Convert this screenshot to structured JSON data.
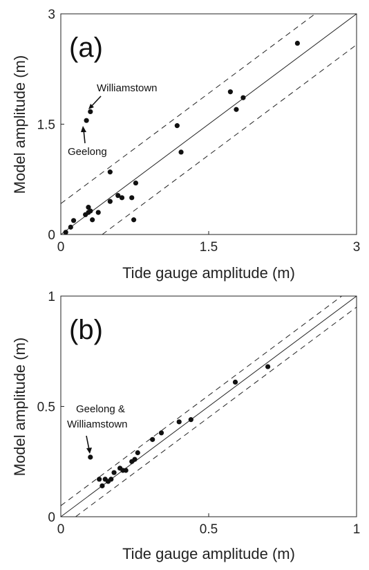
{
  "chart_data": [
    {
      "type": "scatter",
      "panel_label": "(a)",
      "xlabel": "Tide gauge amplitude (m)",
      "ylabel": "Model amplitude (m)",
      "xlim": [
        0,
        3
      ],
      "ylim": [
        0,
        3
      ],
      "xticks": [
        0,
        1.5,
        3
      ],
      "yticks": [
        0,
        1.5,
        3
      ],
      "tick_labels_x": [
        "0",
        "1.5",
        "3"
      ],
      "tick_labels_y": [
        "0",
        "1.5",
        "3"
      ],
      "grid": false,
      "reference_line": {
        "slope": 1,
        "intercept": 0
      },
      "band_lines": [
        {
          "slope": 1,
          "intercept": 0.42
        },
        {
          "slope": 1,
          "intercept": -0.42
        }
      ],
      "points": [
        {
          "x": 0.05,
          "y": 0.03
        },
        {
          "x": 0.1,
          "y": 0.1
        },
        {
          "x": 0.13,
          "y": 0.19
        },
        {
          "x": 0.25,
          "y": 0.27
        },
        {
          "x": 0.28,
          "y": 0.37
        },
        {
          "x": 0.28,
          "y": 0.3
        },
        {
          "x": 0.3,
          "y": 0.32
        },
        {
          "x": 0.32,
          "y": 0.2
        },
        {
          "x": 0.38,
          "y": 0.3
        },
        {
          "x": 0.5,
          "y": 0.45
        },
        {
          "x": 0.58,
          "y": 0.53
        },
        {
          "x": 0.62,
          "y": 0.5
        },
        {
          "x": 0.72,
          "y": 0.5
        },
        {
          "x": 0.74,
          "y": 0.2
        },
        {
          "x": 0.76,
          "y": 0.7
        },
        {
          "x": 0.5,
          "y": 0.85
        },
        {
          "x": 1.18,
          "y": 1.48
        },
        {
          "x": 1.22,
          "y": 1.12
        },
        {
          "x": 1.72,
          "y": 1.94
        },
        {
          "x": 1.78,
          "y": 1.7
        },
        {
          "x": 1.85,
          "y": 1.86
        },
        {
          "x": 2.4,
          "y": 2.6
        },
        {
          "x": 0.26,
          "y": 1.55
        },
        {
          "x": 0.3,
          "y": 1.67
        }
      ],
      "annotations": [
        {
          "text": "Williamstown",
          "x": 0.3,
          "y": 1.67
        },
        {
          "text": "Geelong",
          "x": 0.26,
          "y": 1.55
        }
      ]
    },
    {
      "type": "scatter",
      "panel_label": "(b)",
      "xlabel": "Tide gauge amplitude (m)",
      "ylabel": "Model amplitude (m)",
      "xlim": [
        0,
        1
      ],
      "ylim": [
        0,
        1
      ],
      "xticks": [
        0,
        0.5,
        1
      ],
      "yticks": [
        0,
        0.5,
        1
      ],
      "tick_labels_x": [
        "0",
        "0.5",
        "1"
      ],
      "tick_labels_y": [
        "0",
        "0.5",
        "1"
      ],
      "grid": false,
      "reference_line": {
        "slope": 1,
        "intercept": 0
      },
      "band_lines": [
        {
          "slope": 1,
          "intercept": 0.05
        },
        {
          "slope": 1,
          "intercept": -0.05
        }
      ],
      "points": [
        {
          "x": 0.1,
          "y": 0.27
        },
        {
          "x": 0.13,
          "y": 0.17
        },
        {
          "x": 0.14,
          "y": 0.14
        },
        {
          "x": 0.15,
          "y": 0.17
        },
        {
          "x": 0.16,
          "y": 0.16
        },
        {
          "x": 0.17,
          "y": 0.17
        },
        {
          "x": 0.18,
          "y": 0.2
        },
        {
          "x": 0.2,
          "y": 0.22
        },
        {
          "x": 0.21,
          "y": 0.21
        },
        {
          "x": 0.22,
          "y": 0.21
        },
        {
          "x": 0.24,
          "y": 0.25
        },
        {
          "x": 0.25,
          "y": 0.26
        },
        {
          "x": 0.26,
          "y": 0.29
        },
        {
          "x": 0.31,
          "y": 0.35
        },
        {
          "x": 0.34,
          "y": 0.38
        },
        {
          "x": 0.4,
          "y": 0.43
        },
        {
          "x": 0.44,
          "y": 0.44
        },
        {
          "x": 0.59,
          "y": 0.61
        },
        {
          "x": 0.7,
          "y": 0.68
        }
      ],
      "annotations": [
        {
          "text": "Geelong &",
          "x": 0.1,
          "y": 0.27
        },
        {
          "text": "Williamstown",
          "x": 0.1,
          "y": 0.27
        }
      ]
    }
  ]
}
